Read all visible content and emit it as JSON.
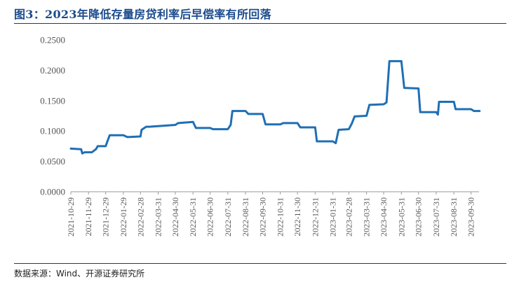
{
  "title": "图3：2023年降低存量房贷利率后早偿率有所回落",
  "source": "数据来源：Wind、开源证券研究所",
  "chart_data": {
    "type": "line",
    "title": "图3：2023年降低存量房贷利率后早偿率有所回落",
    "xlabel": "",
    "ylabel": "",
    "ylim": [
      0,
      0.25
    ],
    "yticks": [
      "0.0000",
      "0.0500",
      "0.1000",
      "0.1500",
      "0.2000",
      "0.2500"
    ],
    "xticks": [
      "2021-10-29",
      "2021-11-29",
      "2021-12-29",
      "2022-01-29",
      "2022-02-28",
      "2022-03-31",
      "2022-04-30",
      "2022-05-31",
      "2022-06-30",
      "2022-07-31",
      "2022-08-31",
      "2022-09-30",
      "2022-10-31",
      "2022-11-30",
      "2022-12-31",
      "2023-01-31",
      "2023-02-28",
      "2023-03-31",
      "2023-04-30",
      "2023-05-31",
      "2023-06-30",
      "2023-07-31",
      "2023-08-31",
      "2023-09-30"
    ],
    "grid": false,
    "legend": "none",
    "color": "#1f6fb5",
    "series": [
      {
        "points": [
          [
            "2021-10-29",
            0.071
          ],
          [
            "2021-11-16",
            0.07
          ],
          [
            "2021-11-18",
            0.063
          ],
          [
            "2021-11-22",
            0.065
          ],
          [
            "2021-12-05",
            0.065
          ],
          [
            "2021-12-12",
            0.07
          ],
          [
            "2021-12-15",
            0.075
          ],
          [
            "2021-12-29",
            0.075
          ],
          [
            "2022-01-01",
            0.083
          ],
          [
            "2022-01-05",
            0.093
          ],
          [
            "2022-01-29",
            0.093
          ],
          [
            "2022-02-05",
            0.09
          ],
          [
            "2022-02-28",
            0.091
          ],
          [
            "2022-03-02",
            0.102
          ],
          [
            "2022-03-10",
            0.107
          ],
          [
            "2022-03-15",
            0.107
          ],
          [
            "2022-03-31",
            0.108
          ],
          [
            "2022-04-30",
            0.11
          ],
          [
            "2022-05-05",
            0.113
          ],
          [
            "2022-05-31",
            0.115
          ],
          [
            "2022-06-05",
            0.105
          ],
          [
            "2022-06-30",
            0.105
          ],
          [
            "2022-07-05",
            0.103
          ],
          [
            "2022-07-31",
            0.103
          ],
          [
            "2022-08-05",
            0.11
          ],
          [
            "2022-08-08",
            0.133
          ],
          [
            "2022-08-31",
            0.133
          ],
          [
            "2022-09-05",
            0.128
          ],
          [
            "2022-09-30",
            0.128
          ],
          [
            "2022-10-05",
            0.111
          ],
          [
            "2022-10-31",
            0.111
          ],
          [
            "2022-11-05",
            0.113
          ],
          [
            "2022-11-30",
            0.113
          ],
          [
            "2022-12-05",
            0.106
          ],
          [
            "2022-12-31",
            0.106
          ],
          [
            "2023-01-03",
            0.083
          ],
          [
            "2023-01-31",
            0.083
          ],
          [
            "2023-02-05",
            0.08
          ],
          [
            "2023-02-10",
            0.102
          ],
          [
            "2023-02-28",
            0.103
          ],
          [
            "2023-03-05",
            0.112
          ],
          [
            "2023-03-10",
            0.124
          ],
          [
            "2023-03-31",
            0.125
          ],
          [
            "2023-04-05",
            0.143
          ],
          [
            "2023-04-30",
            0.144
          ],
          [
            "2023-05-05",
            0.147
          ],
          [
            "2023-05-10",
            0.215
          ],
          [
            "2023-05-31",
            0.215
          ],
          [
            "2023-06-05",
            0.171
          ],
          [
            "2023-06-30",
            0.17
          ],
          [
            "2023-07-03",
            0.131
          ],
          [
            "2023-07-31",
            0.131
          ],
          [
            "2023-08-03",
            0.127
          ],
          [
            "2023-08-05",
            0.148
          ],
          [
            "2023-08-31",
            0.148
          ],
          [
            "2023-09-03",
            0.136
          ],
          [
            "2023-09-30",
            0.136
          ],
          [
            "2023-10-05",
            0.133
          ],
          [
            "2023-10-15",
            0.133
          ]
        ]
      }
    ]
  }
}
